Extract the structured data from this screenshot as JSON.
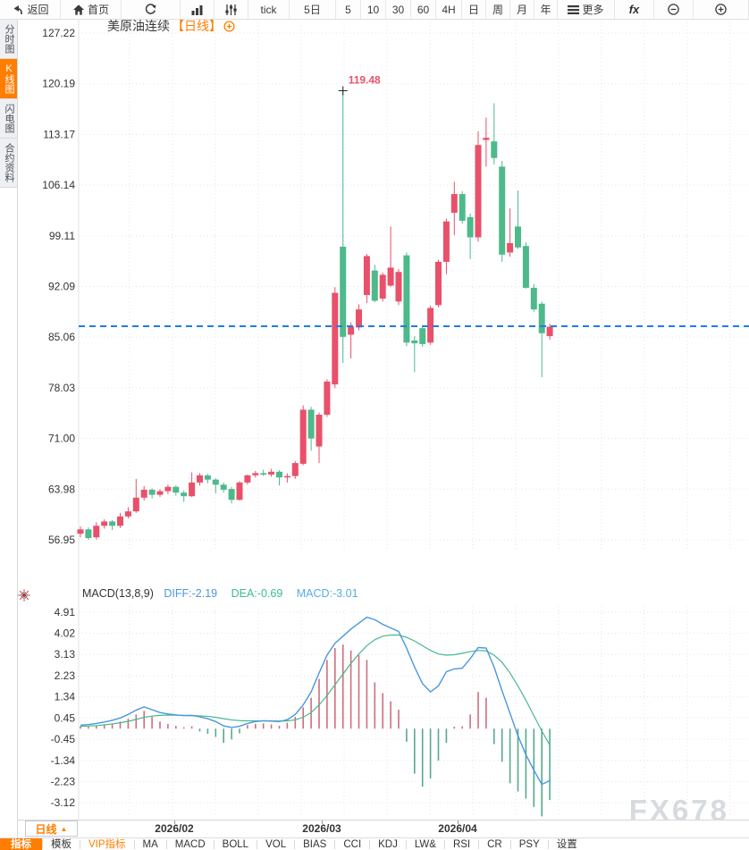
{
  "colors": {
    "accent_orange": "#ff7d00",
    "up_red": "#e9506a",
    "down_green": "#4eb98b",
    "hist_red": "#cf6e7d",
    "hist_green": "#56a98e",
    "diff_blue": "#4a97dd",
    "dea_green": "#46b88c",
    "price_line_blue": "#1e7ce8",
    "annotation_pink": "#e8546b",
    "grid": "#e9e3e3",
    "axis_text": "#333333"
  },
  "toolbar": {
    "items": [
      {
        "id": "back",
        "label": "返回",
        "icon": "back-arrow-icon"
      },
      {
        "id": "home",
        "label": "首页",
        "icon": "home-icon"
      },
      {
        "id": "refresh",
        "label": "",
        "icon": "refresh-icon"
      },
      {
        "id": "bar-chart",
        "label": "",
        "icon": "bar-chart-icon"
      },
      {
        "id": "sliders",
        "label": "",
        "icon": "sliders-icon"
      },
      {
        "id": "tick",
        "label": "tick"
      },
      {
        "id": "5d",
        "label": "5日"
      },
      {
        "id": "5",
        "label": "5"
      },
      {
        "id": "10",
        "label": "10"
      },
      {
        "id": "30",
        "label": "30"
      },
      {
        "id": "60",
        "label": "60"
      },
      {
        "id": "4h",
        "label": "4H"
      },
      {
        "id": "day",
        "label": "日"
      },
      {
        "id": "week",
        "label": "周"
      },
      {
        "id": "month",
        "label": "月"
      },
      {
        "id": "year",
        "label": "年"
      },
      {
        "id": "more",
        "label": "更多",
        "icon": "menu-icon"
      },
      {
        "id": "fx",
        "label": "fx",
        "icon": "fx-icon"
      },
      {
        "id": "zoom-out",
        "label": "",
        "icon": "zoom-out-icon"
      },
      {
        "id": "zoom-in",
        "label": "",
        "icon": "zoom-in-icon"
      }
    ]
  },
  "sidebar": {
    "tabs": [
      {
        "id": "time-share",
        "label": "分时图",
        "active": false
      },
      {
        "id": "kline",
        "label": "K线图",
        "active": true
      },
      {
        "id": "lightning",
        "label": "闪电图",
        "active": false
      },
      {
        "id": "contract-info",
        "label": "合约资料",
        "active": false
      }
    ]
  },
  "chart_header": {
    "instrument": "美原油连续",
    "period_tag": "【日线】"
  },
  "macd_header": {
    "title": "MACD(13,8,9)",
    "diff_label": "DIFF:-2.19",
    "dea_label": "DEA:-0.69",
    "macd_label": "MACD:-3.01"
  },
  "period_dropdown": {
    "label": "日线",
    "arrow": "▲"
  },
  "indicator_bar": {
    "items": [
      {
        "label": "指标",
        "state": "active"
      },
      {
        "label": "模板",
        "state": ""
      },
      {
        "label": "VIP指标",
        "state": "vip"
      },
      {
        "label": "MA",
        "state": ""
      },
      {
        "label": "MACD",
        "state": ""
      },
      {
        "label": "BOLL",
        "state": ""
      },
      {
        "label": "VOL",
        "state": ""
      },
      {
        "label": "BIAS",
        "state": ""
      },
      {
        "label": "CCI",
        "state": ""
      },
      {
        "label": "KDJ",
        "state": ""
      },
      {
        "label": "LW&",
        "state": ""
      },
      {
        "label": "RSI",
        "state": ""
      },
      {
        "label": "CR",
        "state": ""
      },
      {
        "label": "PSY",
        "state": ""
      },
      {
        "label": "设置",
        "state": ""
      }
    ]
  },
  "watermark": "FX678",
  "chart_data": {
    "type": "candlestick+macd",
    "instrument": "美原油连续",
    "period": "日线",
    "price_axis_ticks": [
      127.22,
      120.19,
      113.17,
      106.14,
      99.11,
      92.09,
      85.06,
      78.03,
      71.0,
      63.98,
      56.95
    ],
    "macd_axis_ticks": [
      4.91,
      4.02,
      3.13,
      2.23,
      1.34,
      0.45,
      -0.45,
      -1.34,
      -2.23,
      -3.12
    ],
    "x_labels": [
      "2026/02",
      "2026/03",
      "2026/04"
    ],
    "last_price": 86.57,
    "spike_high": 119.48,
    "candles": [
      [
        57.8,
        58.8,
        57.3,
        58.4
      ],
      [
        58.4,
        58.7,
        56.95,
        57.2
      ],
      [
        57.3,
        59.4,
        57.0,
        58.9
      ],
      [
        58.9,
        59.8,
        58.5,
        59.5
      ],
      [
        59.5,
        59.7,
        58.3,
        58.9
      ],
      [
        58.9,
        60.7,
        58.6,
        60.2
      ],
      [
        60.2,
        61.5,
        59.9,
        60.9
      ],
      [
        60.9,
        65.4,
        60.7,
        62.8
      ],
      [
        62.8,
        64.4,
        62.4,
        63.9
      ],
      [
        63.9,
        64.1,
        62.7,
        63.2
      ],
      [
        63.2,
        64.0,
        62.9,
        63.7
      ],
      [
        63.7,
        64.6,
        63.3,
        64.3
      ],
      [
        64.3,
        64.5,
        63.1,
        63.5
      ],
      [
        63.5,
        63.8,
        62.2,
        63.0
      ],
      [
        63.0,
        66.3,
        62.9,
        64.9
      ],
      [
        64.9,
        66.2,
        64.5,
        65.9
      ],
      [
        65.9,
        66.1,
        64.8,
        65.3
      ],
      [
        65.3,
        65.5,
        63.4,
        64.6
      ],
      [
        64.6,
        64.9,
        63.5,
        63.9
      ],
      [
        64.0,
        64.3,
        62.0,
        62.5
      ],
      [
        62.5,
        65.1,
        62.4,
        64.9
      ],
      [
        64.9,
        66.0,
        64.6,
        65.9
      ],
      [
        65.9,
        66.5,
        65.6,
        66.2
      ],
      [
        66.2,
        66.7,
        65.8,
        66.0
      ],
      [
        66.0,
        66.8,
        65.7,
        66.4
      ],
      [
        66.4,
        66.6,
        64.5,
        65.6
      ],
      [
        65.6,
        66.2,
        64.9,
        65.8
      ],
      [
        65.8,
        67.9,
        65.4,
        67.6
      ],
      [
        67.5,
        75.6,
        67.3,
        75.0
      ],
      [
        75.0,
        75.4,
        69.3,
        71.0
      ],
      [
        69.9,
        74.6,
        67.6,
        74.3
      ],
      [
        74.3,
        79.2,
        74.0,
        78.9
      ],
      [
        78.5,
        92.0,
        78.0,
        91.2
      ],
      [
        97.6,
        119.48,
        81.5,
        85.1
      ],
      [
        85.4,
        87.1,
        82.1,
        86.5
      ],
      [
        86.4,
        89.6,
        86.0,
        88.9
      ],
      [
        90.9,
        96.6,
        89.8,
        96.3
      ],
      [
        94.3,
        95.1,
        89.9,
        90.1
      ],
      [
        90.4,
        94.0,
        90.0,
        93.7
      ],
      [
        92.2,
        100.4,
        92.0,
        94.7
      ],
      [
        90.0,
        94.5,
        89.5,
        94.1
      ],
      [
        96.4,
        96.8,
        83.8,
        84.3
      ],
      [
        84.6,
        85.2,
        80.2,
        84.2
      ],
      [
        86.3,
        86.6,
        83.7,
        84.1
      ],
      [
        84.3,
        89.4,
        84.0,
        89.1
      ],
      [
        89.5,
        95.8,
        89.2,
        95.5
      ],
      [
        95.5,
        101.5,
        93.8,
        101.1
      ],
      [
        102.3,
        106.6,
        99.2,
        104.9
      ],
      [
        104.9,
        105.3,
        100.8,
        101.2
      ],
      [
        101.7,
        102.2,
        95.9,
        98.9
      ],
      [
        98.9,
        113.6,
        98.3,
        111.7
      ],
      [
        112.4,
        115.5,
        108.7,
        112.7
      ],
      [
        112.2,
        117.5,
        109.0,
        109.9
      ],
      [
        108.7,
        109.5,
        95.5,
        96.5
      ],
      [
        96.8,
        102.9,
        96.2,
        98.1
      ],
      [
        100.4,
        105.4,
        97.3,
        97.5
      ],
      [
        97.7,
        98.2,
        91.8,
        91.9
      ],
      [
        91.9,
        92.4,
        88.6,
        88.9
      ],
      [
        89.7,
        90.0,
        79.5,
        85.6
      ],
      [
        85.2,
        86.9,
        84.7,
        86.5
      ]
    ],
    "macd": {
      "params": [
        13,
        8,
        9
      ],
      "diff": -2.19,
      "dea": -0.69,
      "macd": -3.01,
      "hist_series": [
        0.1,
        0.08,
        0.12,
        0.18,
        0.22,
        0.3,
        0.42,
        0.6,
        0.75,
        0.5,
        0.3,
        0.2,
        0.12,
        0.06,
        0.1,
        -0.12,
        -0.22,
        -0.35,
        -0.6,
        -0.45,
        -0.2,
        0.15,
        0.2,
        0.22,
        0.18,
        0.12,
        0.25,
        0.5,
        0.9,
        1.3,
        2.1,
        2.9,
        3.4,
        3.55,
        3.3,
        3.1,
        2.9,
        1.95,
        1.5,
        1.15,
        0.8,
        -0.55,
        -1.9,
        -2.45,
        -2.1,
        -1.35,
        -0.6,
        0.08,
        0.1,
        0.6,
        1.55,
        1.3,
        -0.65,
        -1.4,
        -2.3,
        -2.65,
        -2.95,
        -3.3,
        -3.7,
        -3.01
      ],
      "diff_series": [
        0.15,
        0.17,
        0.22,
        0.28,
        0.35,
        0.45,
        0.6,
        0.78,
        0.92,
        0.8,
        0.68,
        0.62,
        0.58,
        0.55,
        0.56,
        0.5,
        0.42,
        0.3,
        0.12,
        0.05,
        0.1,
        0.22,
        0.3,
        0.33,
        0.32,
        0.3,
        0.38,
        0.6,
        1.0,
        1.55,
        2.35,
        3.1,
        3.6,
        3.9,
        4.2,
        4.45,
        4.7,
        4.6,
        4.4,
        4.25,
        4.1,
        3.4,
        2.6,
        1.9,
        1.55,
        1.8,
        2.4,
        2.52,
        2.55,
        2.95,
        3.42,
        3.4,
        2.6,
        1.6,
        0.65,
        -0.3,
        -1.1,
        -1.75,
        -2.35,
        -2.19
      ],
      "dea_series": [
        0.1,
        0.11,
        0.13,
        0.16,
        0.2,
        0.25,
        0.31,
        0.39,
        0.48,
        0.53,
        0.56,
        0.57,
        0.57,
        0.56,
        0.55,
        0.54,
        0.52,
        0.48,
        0.42,
        0.37,
        0.34,
        0.33,
        0.33,
        0.33,
        0.33,
        0.32,
        0.33,
        0.37,
        0.48,
        0.68,
        1.0,
        1.4,
        1.85,
        2.3,
        2.75,
        3.15,
        3.5,
        3.75,
        3.9,
        3.95,
        3.95,
        3.85,
        3.7,
        3.5,
        3.3,
        3.15,
        3.1,
        3.12,
        3.18,
        3.25,
        3.3,
        3.28,
        3.1,
        2.8,
        2.35,
        1.8,
        1.2,
        0.55,
        -0.1,
        -0.69
      ]
    }
  }
}
